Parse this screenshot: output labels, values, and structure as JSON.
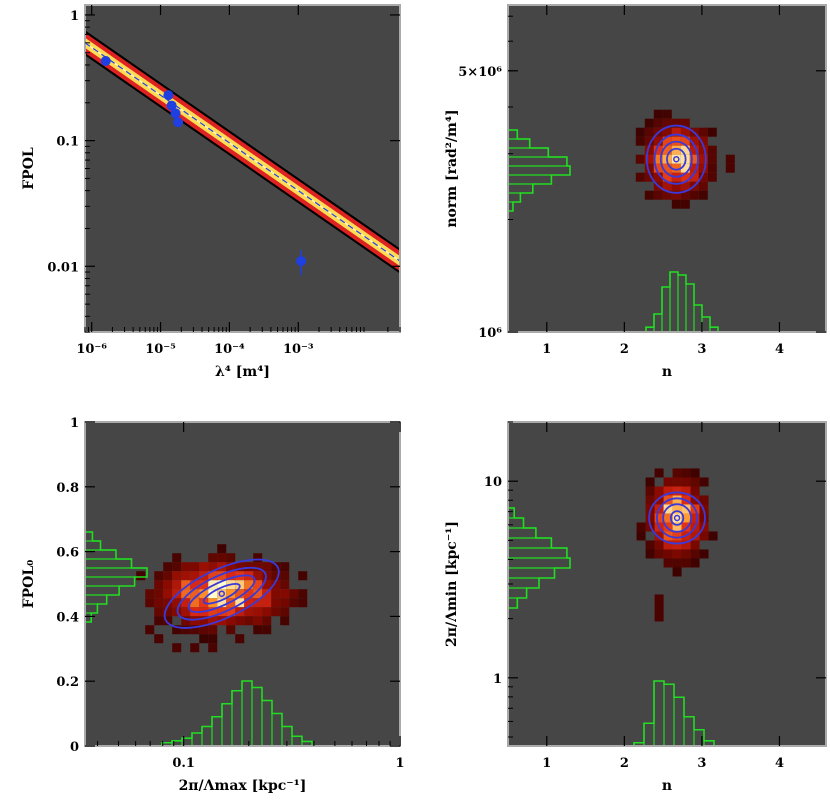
{
  "colors": {
    "panel_bg": "#464646",
    "panel_frame": "#aaaaaa",
    "data_points": "#1f3fe0",
    "contours": "#3a3adc",
    "histograms": "#22dd22",
    "fit_band_inner": "#ffdc55",
    "fit_band_mid": "#dd2222",
    "fit_band_outer": "#000000"
  },
  "chart_data": [
    {
      "id": "fpol-vs-lambda4",
      "type": "scatter",
      "xlabel": "λ⁴ [m⁴]",
      "ylabel": "FPOL",
      "xscale": "log",
      "yscale": "log",
      "xlim": [
        8e-07,
        0.03
      ],
      "ylim": [
        0.003,
        1.2
      ],
      "x_ticks": [
        {
          "v": 1e-06,
          "label": "10⁻⁶"
        },
        {
          "v": 1e-05,
          "label": "10⁻⁵"
        },
        {
          "v": 0.0001,
          "label": "10⁻⁴"
        },
        {
          "v": 0.001,
          "label": "10⁻³"
        }
      ],
      "y_ticks": [
        {
          "v": 1,
          "label": "1"
        },
        {
          "v": 0.1,
          "label": "0.1"
        },
        {
          "v": 0.01,
          "label": "0.01"
        }
      ],
      "fit_band": {
        "x": [
          8e-07,
          0.03
        ],
        "center": [
          0.6,
          0.011
        ],
        "spread_dex": [
          0.1,
          0.08,
          0.04
        ]
      },
      "points": [
        {
          "x": 1.6e-06,
          "y": 0.43,
          "err": 0.02
        },
        {
          "x": 1.3e-05,
          "y": 0.23,
          "err": 0.015
        },
        {
          "x": 1.45e-05,
          "y": 0.19,
          "err": 0.012
        },
        {
          "x": 1.65e-05,
          "y": 0.165,
          "err": 0.01
        },
        {
          "x": 1.8e-05,
          "y": 0.14,
          "err": 0.01
        },
        {
          "x": 0.0011,
          "y": 0.011,
          "err": 0.0025
        }
      ]
    },
    {
      "id": "norm-vs-n",
      "type": "heatmap",
      "xlabel": "n",
      "ylabel": "norm [rad²/m⁴]",
      "xscale": "linear",
      "yscale": "log",
      "xlim": [
        0.5,
        4.6
      ],
      "ylim": [
        1000000,
        7500000
      ],
      "x_ticks": [
        {
          "v": 1,
          "label": "1"
        },
        {
          "v": 2,
          "label": "2"
        },
        {
          "v": 3,
          "label": "3"
        },
        {
          "v": 4,
          "label": "4"
        }
      ],
      "y_ticks": [
        {
          "v": 1000000,
          "label": "10⁶"
        },
        {
          "v": 5000000,
          "label": "5×10⁶"
        }
      ],
      "peak": {
        "x": 2.67,
        "y": 2900000
      },
      "contour_halfwidths_dex": [
        [
          0.06,
          0.028
        ],
        [
          0.1,
          0.047
        ],
        [
          0.14,
          0.066
        ],
        [
          0.19,
          0.09
        ]
      ],
      "x_hist": {
        "values": [
          0.08,
          0.3,
          0.75,
          1.0,
          0.95,
          0.8,
          0.45,
          0.25,
          0.08
        ],
        "x_start": 2.25,
        "bin": 0.1
      },
      "y_hist": {
        "values": [
          0.15,
          0.35,
          0.65,
          0.95,
          1.0,
          0.7,
          0.4,
          0.2,
          0.08
        ]
      }
    },
    {
      "id": "fpol0-vs-lambda-max",
      "type": "heatmap",
      "xlabel": "2π/Λmax [kpc⁻¹]",
      "ylabel": "FPOL₀",
      "xscale": "log",
      "yscale": "linear",
      "xlim": [
        0.035,
        1
      ],
      "ylim": [
        0,
        1
      ],
      "x_ticks": [
        {
          "v": 0.1,
          "label": "0.1"
        },
        {
          "v": 1,
          "label": "1"
        }
      ],
      "y_ticks": [
        {
          "v": 0,
          "label": "0"
        },
        {
          "v": 0.2,
          "label": "0.2"
        },
        {
          "v": 0.4,
          "label": "0.4"
        },
        {
          "v": 0.6,
          "label": "0.6"
        },
        {
          "v": 0.8,
          "label": "0.8"
        },
        {
          "v": 1,
          "label": "1"
        }
      ],
      "peak": {
        "x": 0.15,
        "y": 0.47
      },
      "contour_halfwidths": [
        [
          0.035,
          0.018
        ],
        [
          0.07,
          0.035
        ],
        [
          0.1,
          0.055
        ],
        [
          0.14,
          0.075
        ]
      ],
      "x_hist": {
        "values": [
          0.05,
          0.08,
          0.12,
          0.2,
          0.3,
          0.45,
          0.65,
          0.85,
          1.0,
          0.9,
          0.7,
          0.5,
          0.3,
          0.15,
          0.07
        ]
      },
      "y_hist": {
        "values": [
          0.12,
          0.25,
          0.5,
          0.75,
          1.0,
          0.8,
          0.55,
          0.35,
          0.2,
          0.1
        ]
      }
    },
    {
      "id": "lambda-min-vs-n",
      "type": "heatmap",
      "xlabel": "n",
      "ylabel": "2π/Λmin [kpc⁻¹]",
      "xscale": "linear",
      "yscale": "log",
      "xlim": [
        0.5,
        4.6
      ],
      "ylim": [
        0.45,
        20
      ],
      "x_ticks": [
        {
          "v": 1,
          "label": "1"
        },
        {
          "v": 2,
          "label": "2"
        },
        {
          "v": 3,
          "label": "3"
        },
        {
          "v": 4,
          "label": "4"
        }
      ],
      "y_ticks": [
        {
          "v": 1,
          "label": "1"
        },
        {
          "v": 10,
          "label": "10"
        }
      ],
      "peak": {
        "x": 2.68,
        "y": 6.5
      },
      "contour_halfwidths_dex": [
        [
          0.04,
          0.035
        ],
        [
          0.09,
          0.07
        ],
        [
          0.13,
          0.1
        ],
        [
          0.18,
          0.13
        ]
      ],
      "x_hist": {
        "values": [
          0.05,
          0.35,
          1.0,
          0.95,
          0.75,
          0.45,
          0.25,
          0.08
        ],
        "x_start": 2.3,
        "bin": 0.12
      },
      "y_hist": {
        "values": [
          0.1,
          0.25,
          0.45,
          0.7,
          0.95,
          1.0,
          0.75,
          0.5,
          0.3,
          0.15
        ]
      }
    }
  ]
}
